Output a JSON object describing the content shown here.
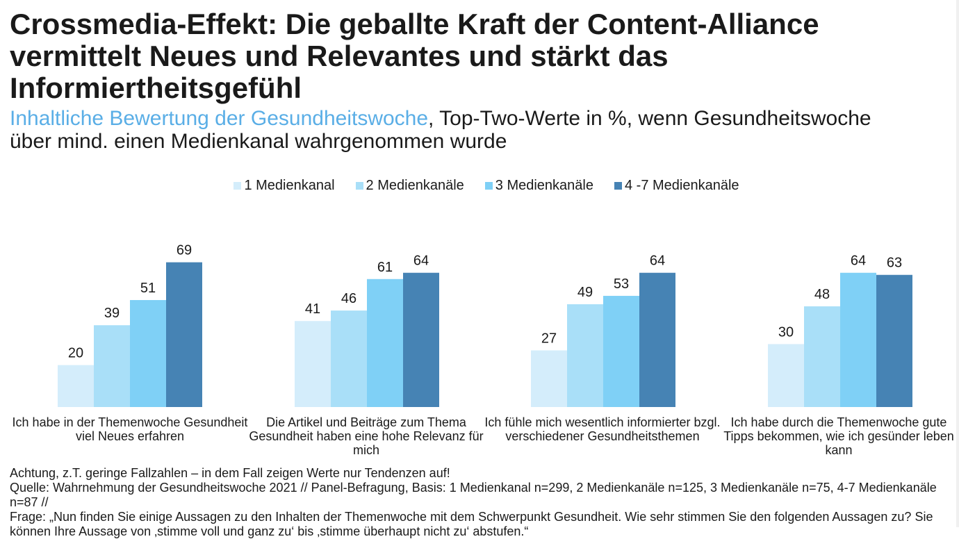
{
  "title": "Crossmedia-Effekt: Die geballte Kraft der Content-Alliance vermittelt Neues und Relevantes und stärkt das Informiertheitsgefühl",
  "subtitle_highlight": "Inhaltliche Bewertung der Gesundheitswoche",
  "subtitle_rest": ", Top-Two-Werte in %, wenn Gesundheitswoche über mind. einen Medienkanal wahrgenommen wurde",
  "footer": {
    "note": "Achtung, z.T. geringe Fallzahlen – in dem Fall zeigen Werte nur Tendenzen auf!",
    "source": "Quelle: Wahrnehmung der Gesundheitswoche 2021 // Panel-Befragung, Basis: 1 Medienkanal n=299, 2 Medienkanäle n=125, 3 Medienkanäle n=75, 4-7 Medienkanäle n=87 //",
    "question": "Frage: „Nun finden Sie einige Aussagen zu den Inhalten der Themenwoche mit dem Schwerpunkt Gesundheit. Wie sehr stimmen Sie den folgenden Aussagen zu? Sie können Ihre Aussage von ‚stimme voll und ganz zu‘ bis ‚stimme überhaupt nicht zu‘ abstufen.“"
  },
  "chart_data": {
    "type": "bar",
    "categories": [
      "Ich habe in der Themenwoche Gesundheit viel Neues erfahren",
      "Die Artikel und Beiträge zum Thema Gesundheit haben eine hohe Relevanz für mich",
      "Ich fühle mich wesentlich informierter bzgl. verschiedener Gesundheitsthemen",
      "Ich habe durch die Themenwoche gute Tipps bekommen, wie ich gesünder leben kann"
    ],
    "series": [
      {
        "name": "1 Medienkanal",
        "color": "#d4edfb",
        "values": [
          20,
          41,
          27,
          30
        ]
      },
      {
        "name": "2 Medienkanäle",
        "color": "#a9dff8",
        "values": [
          39,
          46,
          49,
          48
        ]
      },
      {
        "name": "3 Medienkanäle",
        "color": "#7fd0f6",
        "values": [
          51,
          61,
          53,
          64
        ]
      },
      {
        "name": "4 -7 Medienkanäle",
        "color": "#4683b4",
        "values": [
          69,
          64,
          64,
          63
        ]
      }
    ],
    "ylim": [
      0,
      100
    ],
    "grid": false,
    "legend_position": "top-center"
  }
}
